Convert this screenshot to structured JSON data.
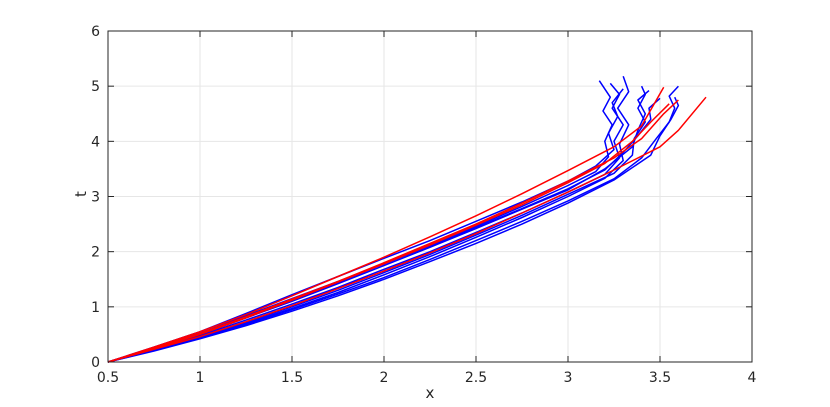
{
  "chart_data": {
    "type": "line",
    "title": "",
    "xlabel": "x",
    "ylabel": "t",
    "xlim": [
      0.5,
      4
    ],
    "ylim": [
      0,
      6
    ],
    "xticks": [
      0.5,
      1,
      1.5,
      2,
      2.5,
      3,
      3.5,
      4
    ],
    "yticks": [
      0,
      1,
      2,
      3,
      4,
      5,
      6
    ],
    "xtick_labels": [
      "0.5",
      "1",
      "1.5",
      "2",
      "2.5",
      "3",
      "3.5",
      "4"
    ],
    "ytick_labels": [
      "0",
      "1",
      "2",
      "3",
      "4",
      "5",
      "6"
    ],
    "grid": true,
    "legend": "none",
    "colors": {
      "red": "#ff0000",
      "blue": "#0000ff",
      "grid": "#e6e6e6",
      "axis": "#262626"
    },
    "series": [
      {
        "color": "#0000ff",
        "points": [
          [
            0.5,
            0
          ],
          [
            0.75,
            0.26
          ],
          [
            1.0,
            0.52
          ],
          [
            1.25,
            0.82
          ],
          [
            1.5,
            1.12
          ],
          [
            1.75,
            1.44
          ],
          [
            2.0,
            1.78
          ],
          [
            2.25,
            2.12
          ],
          [
            2.5,
            2.46
          ],
          [
            2.75,
            2.82
          ],
          [
            3.0,
            3.2
          ],
          [
            3.15,
            3.45
          ],
          [
            3.22,
            3.72
          ],
          [
            3.2,
            4.0
          ],
          [
            3.24,
            4.3
          ],
          [
            3.19,
            4.55
          ],
          [
            3.23,
            4.8
          ],
          [
            3.17,
            5.1
          ]
        ]
      },
      {
        "color": "#0000ff",
        "points": [
          [
            0.5,
            0
          ],
          [
            0.75,
            0.22
          ],
          [
            1.0,
            0.45
          ],
          [
            1.25,
            0.7
          ],
          [
            1.5,
            0.97
          ],
          [
            1.75,
            1.26
          ],
          [
            2.0,
            1.58
          ],
          [
            2.25,
            1.91
          ],
          [
            2.5,
            2.26
          ],
          [
            2.75,
            2.62
          ],
          [
            3.0,
            3.0
          ],
          [
            3.2,
            3.33
          ],
          [
            3.3,
            3.65
          ],
          [
            3.28,
            3.95
          ],
          [
            3.33,
            4.3
          ],
          [
            3.27,
            4.6
          ],
          [
            3.33,
            4.9
          ],
          [
            3.3,
            5.18
          ]
        ]
      },
      {
        "color": "#0000ff",
        "points": [
          [
            0.5,
            0
          ],
          [
            0.75,
            0.24
          ],
          [
            1.0,
            0.48
          ],
          [
            1.25,
            0.76
          ],
          [
            1.5,
            1.05
          ],
          [
            1.75,
            1.35
          ],
          [
            2.0,
            1.68
          ],
          [
            2.25,
            2.0
          ],
          [
            2.5,
            2.35
          ],
          [
            2.75,
            2.7
          ],
          [
            3.0,
            3.08
          ],
          [
            3.2,
            3.4
          ],
          [
            3.28,
            3.7
          ],
          [
            3.25,
            4.0
          ],
          [
            3.3,
            4.3
          ],
          [
            3.24,
            4.6
          ],
          [
            3.28,
            4.85
          ],
          [
            3.23,
            5.05
          ]
        ]
      },
      {
        "color": "#0000ff",
        "points": [
          [
            0.5,
            0
          ],
          [
            0.75,
            0.23
          ],
          [
            1.0,
            0.46
          ],
          [
            1.25,
            0.72
          ],
          [
            1.5,
            1.0
          ],
          [
            1.75,
            1.3
          ],
          [
            2.0,
            1.62
          ],
          [
            2.25,
            1.95
          ],
          [
            2.5,
            2.3
          ],
          [
            2.75,
            2.66
          ],
          [
            3.0,
            3.04
          ],
          [
            3.25,
            3.42
          ],
          [
            3.35,
            3.75
          ],
          [
            3.36,
            4.05
          ],
          [
            3.42,
            4.35
          ],
          [
            3.38,
            4.6
          ],
          [
            3.42,
            4.85
          ],
          [
            3.4,
            5.0
          ]
        ]
      },
      {
        "color": "#0000ff",
        "points": [
          [
            0.5,
            0
          ],
          [
            0.75,
            0.25
          ],
          [
            1.0,
            0.52
          ],
          [
            1.25,
            0.84
          ],
          [
            1.5,
            1.15
          ],
          [
            1.75,
            1.46
          ],
          [
            2.0,
            1.78
          ],
          [
            2.25,
            2.1
          ],
          [
            2.5,
            2.44
          ],
          [
            2.75,
            2.78
          ],
          [
            3.0,
            3.14
          ],
          [
            3.2,
            3.48
          ],
          [
            3.3,
            3.8
          ],
          [
            3.38,
            4.1
          ],
          [
            3.45,
            4.4
          ],
          [
            3.44,
            4.6
          ],
          [
            3.5,
            4.78
          ]
        ]
      },
      {
        "color": "#0000ff",
        "points": [
          [
            0.5,
            0
          ],
          [
            0.75,
            0.21
          ],
          [
            1.0,
            0.43
          ],
          [
            1.25,
            0.68
          ],
          [
            1.5,
            0.95
          ],
          [
            1.75,
            1.23
          ],
          [
            2.0,
            1.53
          ],
          [
            2.25,
            1.86
          ],
          [
            2.5,
            2.2
          ],
          [
            2.75,
            2.55
          ],
          [
            3.0,
            2.92
          ],
          [
            3.25,
            3.32
          ],
          [
            3.4,
            3.7
          ],
          [
            3.48,
            4.05
          ],
          [
            3.55,
            4.35
          ],
          [
            3.58,
            4.6
          ],
          [
            3.55,
            4.82
          ],
          [
            3.6,
            5.0
          ]
        ]
      },
      {
        "color": "#0000ff",
        "points": [
          [
            0.5,
            0
          ],
          [
            0.75,
            0.24
          ],
          [
            1.0,
            0.5
          ],
          [
            1.25,
            0.8
          ],
          [
            1.5,
            1.1
          ],
          [
            1.75,
            1.42
          ],
          [
            2.0,
            1.75
          ],
          [
            2.25,
            2.08
          ],
          [
            2.5,
            2.42
          ],
          [
            2.75,
            2.77
          ],
          [
            3.0,
            3.12
          ],
          [
            3.2,
            3.5
          ],
          [
            3.35,
            3.9
          ],
          [
            3.38,
            4.2
          ],
          [
            3.42,
            4.5
          ],
          [
            3.38,
            4.75
          ],
          [
            3.44,
            4.92
          ]
        ]
      },
      {
        "color": "#0000ff",
        "points": [
          [
            0.5,
            0
          ],
          [
            0.75,
            0.27
          ],
          [
            1.0,
            0.55
          ],
          [
            1.25,
            0.88
          ],
          [
            1.5,
            1.22
          ],
          [
            1.75,
            1.55
          ],
          [
            2.0,
            1.88
          ],
          [
            2.25,
            2.2
          ],
          [
            2.5,
            2.55
          ],
          [
            2.75,
            2.9
          ],
          [
            3.0,
            3.28
          ],
          [
            3.15,
            3.55
          ],
          [
            3.25,
            3.85
          ],
          [
            3.22,
            4.15
          ],
          [
            3.27,
            4.45
          ],
          [
            3.24,
            4.7
          ],
          [
            3.3,
            4.95
          ]
        ]
      },
      {
        "color": "#0000ff",
        "points": [
          [
            0.5,
            0
          ],
          [
            0.75,
            0.2
          ],
          [
            1.0,
            0.42
          ],
          [
            1.25,
            0.66
          ],
          [
            1.5,
            0.92
          ],
          [
            1.75,
            1.2
          ],
          [
            2.0,
            1.5
          ],
          [
            2.25,
            1.82
          ],
          [
            2.5,
            2.15
          ],
          [
            2.75,
            2.5
          ],
          [
            3.0,
            2.88
          ],
          [
            3.25,
            3.3
          ],
          [
            3.45,
            3.75
          ],
          [
            3.5,
            4.1
          ],
          [
            3.56,
            4.4
          ],
          [
            3.6,
            4.65
          ],
          [
            3.58,
            4.8
          ]
        ]
      },
      {
        "color": "#ff0000",
        "points": [
          [
            0.5,
            0
          ],
          [
            0.75,
            0.23
          ],
          [
            1.0,
            0.46
          ],
          [
            1.25,
            0.73
          ],
          [
            1.5,
            1.02
          ],
          [
            1.75,
            1.33
          ],
          [
            2.0,
            1.65
          ],
          [
            2.25,
            1.98
          ],
          [
            2.5,
            2.33
          ],
          [
            2.75,
            2.7
          ],
          [
            3.0,
            3.08
          ],
          [
            3.25,
            3.48
          ],
          [
            3.5,
            3.9
          ],
          [
            3.6,
            4.2
          ],
          [
            3.75,
            4.8
          ]
        ]
      },
      {
        "color": "#ff0000",
        "points": [
          [
            0.5,
            0
          ],
          [
            0.75,
            0.25
          ],
          [
            1.0,
            0.52
          ],
          [
            1.25,
            0.82
          ],
          [
            1.5,
            1.14
          ],
          [
            1.75,
            1.46
          ],
          [
            2.0,
            1.8
          ],
          [
            2.25,
            2.15
          ],
          [
            2.5,
            2.5
          ],
          [
            2.75,
            2.88
          ],
          [
            3.0,
            3.28
          ],
          [
            3.25,
            3.7
          ],
          [
            3.4,
            4.05
          ],
          [
            3.52,
            4.5
          ],
          [
            3.6,
            4.75
          ]
        ]
      },
      {
        "color": "#ff0000",
        "points": [
          [
            0.5,
            0
          ],
          [
            0.75,
            0.27
          ],
          [
            1.0,
            0.55
          ],
          [
            1.25,
            0.86
          ],
          [
            1.5,
            1.2
          ],
          [
            1.75,
            1.55
          ],
          [
            2.0,
            1.9
          ],
          [
            2.25,
            2.27
          ],
          [
            2.5,
            2.65
          ],
          [
            2.75,
            3.05
          ],
          [
            3.0,
            3.47
          ],
          [
            3.25,
            3.9
          ],
          [
            3.4,
            4.28
          ],
          [
            3.52,
            4.98
          ]
        ]
      },
      {
        "color": "#ff0000",
        "points": [
          [
            0.5,
            0
          ],
          [
            0.75,
            0.24
          ],
          [
            1.0,
            0.5
          ],
          [
            1.25,
            0.8
          ],
          [
            1.5,
            1.12
          ],
          [
            1.75,
            1.45
          ],
          [
            2.0,
            1.78
          ],
          [
            2.25,
            2.12
          ],
          [
            2.5,
            2.48
          ],
          [
            2.75,
            2.85
          ],
          [
            3.0,
            3.25
          ],
          [
            3.2,
            3.6
          ],
          [
            3.35,
            4.0
          ],
          [
            3.45,
            4.35
          ],
          [
            3.55,
            4.68
          ]
        ]
      }
    ]
  }
}
